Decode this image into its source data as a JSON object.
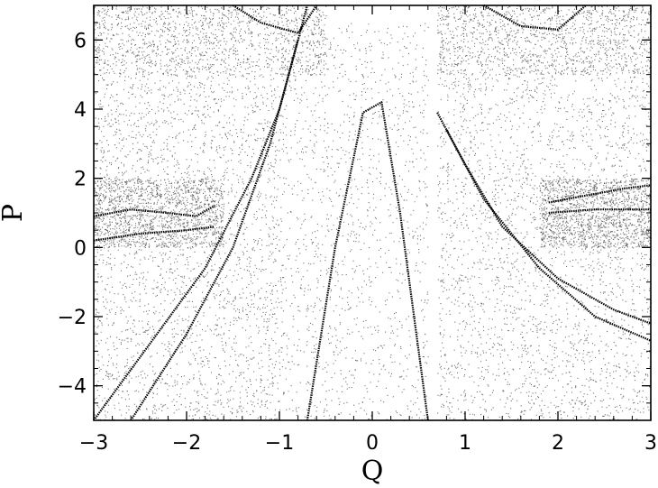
{
  "chart_data": {
    "type": "scatter",
    "title": "",
    "xlabel": "Q",
    "ylabel": "P",
    "xlim": [
      -3,
      3
    ],
    "ylim": [
      -5,
      7
    ],
    "grid": false,
    "legend": "none",
    "marker_color": "#000000",
    "x_ticks": [
      {
        "value": -3,
        "label": "−3"
      },
      {
        "value": -2,
        "label": "−2"
      },
      {
        "value": -1,
        "label": "−1"
      },
      {
        "value": 0,
        "label": "0"
      },
      {
        "value": 1,
        "label": "1"
      },
      {
        "value": 2,
        "label": "2"
      },
      {
        "value": 3,
        "label": "3"
      }
    ],
    "y_ticks": [
      {
        "value": -4,
        "label": "−4"
      },
      {
        "value": -2,
        "label": "−2"
      },
      {
        "value": 0,
        "label": "0"
      },
      {
        "value": 2,
        "label": "2"
      },
      {
        "value": 4,
        "label": "4"
      },
      {
        "value": 6,
        "label": "6"
      }
    ],
    "point_clouds": [
      {
        "x": [
          -3.0,
          -1.0
        ],
        "y": [
          -5.0,
          5.0
        ],
        "density": "high"
      },
      {
        "x": [
          -3.0,
          -1.6
        ],
        "y": [
          0.0,
          2.0
        ],
        "density": "very-high"
      },
      {
        "x": [
          -1.0,
          0.6
        ],
        "y": [
          -5.0,
          6.5
        ],
        "density": "medium"
      },
      {
        "x": [
          0.7,
          3.0
        ],
        "y": [
          -5.0,
          5.0
        ],
        "density": "high"
      },
      {
        "x": [
          1.8,
          3.0
        ],
        "y": [
          0.0,
          2.0
        ],
        "density": "very-high"
      },
      {
        "x": [
          -3.0,
          -0.5
        ],
        "y": [
          5.0,
          7.0
        ],
        "density": "medium"
      },
      {
        "x": [
          0.7,
          3.0
        ],
        "y": [
          5.0,
          7.0
        ],
        "density": "medium"
      }
    ],
    "curves": [
      {
        "x": [
          -3.0,
          -2.4,
          -1.8,
          -1.3,
          -1.0,
          -0.7
        ],
        "y": [
          -5.0,
          -2.8,
          -0.6,
          2.0,
          4.0,
          7.0
        ]
      },
      {
        "x": [
          -2.6,
          -2.0,
          -1.5,
          -1.1,
          -0.8
        ],
        "y": [
          -5.0,
          -2.5,
          0.0,
          3.0,
          6.0
        ]
      },
      {
        "x": [
          -3.0,
          -2.6,
          -2.2,
          -1.9,
          -1.7
        ],
        "y": [
          0.9,
          1.1,
          1.0,
          0.9,
          1.2
        ]
      },
      {
        "x": [
          -3.0,
          -2.5,
          -2.0,
          -1.7
        ],
        "y": [
          0.2,
          0.4,
          0.5,
          0.6
        ]
      },
      {
        "x": [
          0.7,
          1.0,
          1.4,
          2.0,
          2.6,
          3.0
        ],
        "y": [
          3.9,
          2.4,
          0.6,
          -0.9,
          -1.8,
          -2.2
        ]
      },
      {
        "x": [
          0.8,
          1.2,
          1.8,
          2.4,
          3.0
        ],
        "y": [
          3.4,
          1.4,
          -0.6,
          -2.0,
          -2.7
        ]
      },
      {
        "x": [
          1.9,
          2.3,
          2.7,
          3.0
        ],
        "y": [
          1.3,
          1.5,
          1.7,
          1.8
        ]
      },
      {
        "x": [
          1.9,
          2.4,
          3.0
        ],
        "y": [
          1.0,
          1.1,
          1.1
        ]
      },
      {
        "x": [
          -0.7,
          -0.4,
          -0.1,
          0.1,
          0.3,
          0.6
        ],
        "y": [
          -5.0,
          0.0,
          3.9,
          4.2,
          1.0,
          -5.0
        ]
      },
      {
        "x": [
          -1.5,
          -1.2,
          -0.8,
          -0.6
        ],
        "y": [
          7.0,
          6.5,
          6.2,
          7.0
        ]
      },
      {
        "x": [
          1.2,
          1.6,
          2.0,
          2.3
        ],
        "y": [
          7.0,
          6.4,
          6.3,
          7.0
        ]
      }
    ]
  }
}
